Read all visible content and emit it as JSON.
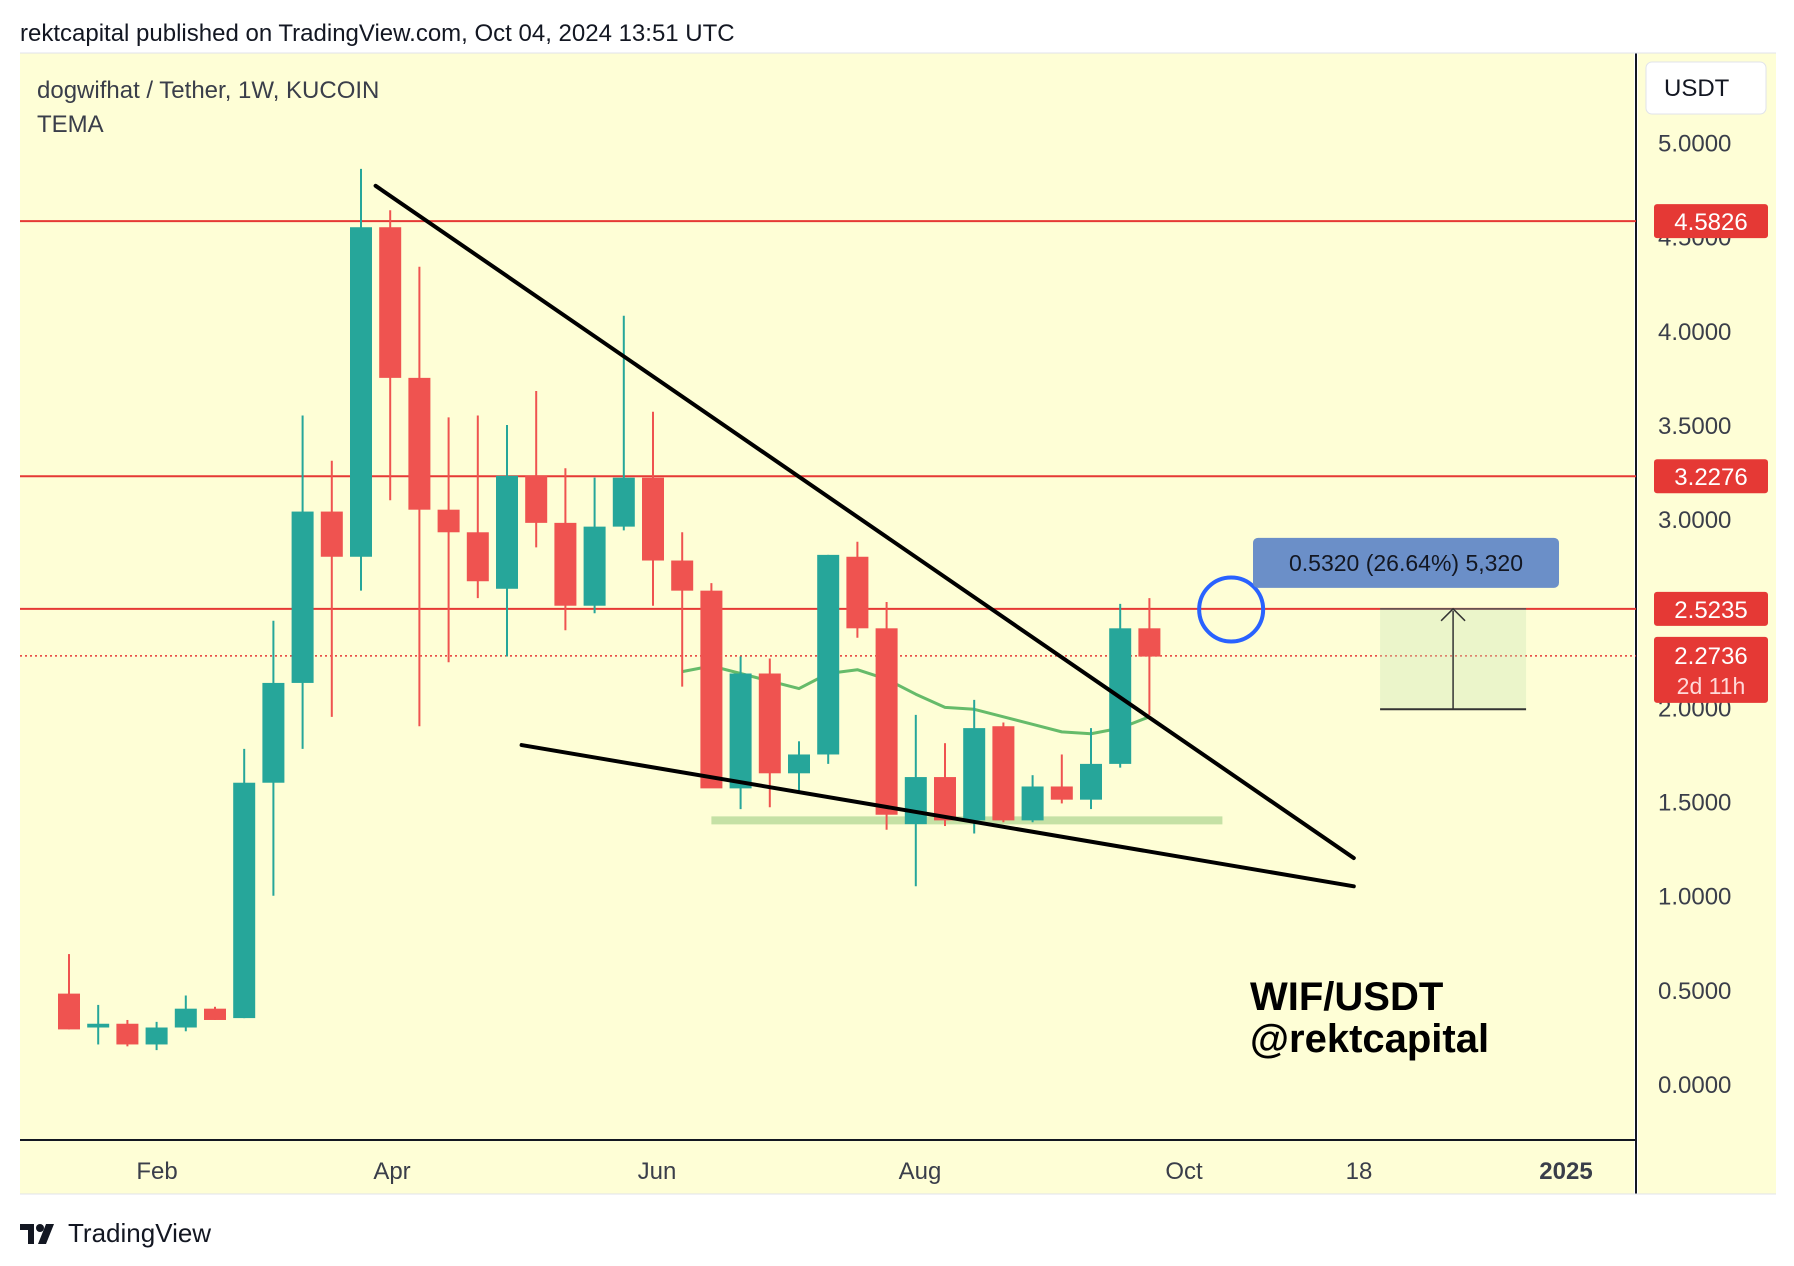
{
  "header": {
    "published": "rektcapital published on TradingView.com, Oct 04, 2024 13:51 UTC"
  },
  "legend": {
    "symbol": "dogwifhat / Tether, 1W, KUCOIN",
    "indicator": "TEMA"
  },
  "currency_button": "USDT",
  "footer": {
    "brand": "TradingView"
  },
  "watermark": {
    "line1": "WIF/USDT",
    "line2": "@rektcapital"
  },
  "colors": {
    "background": "#fefed6",
    "bull": "#26a69a",
    "bear": "#ef5350",
    "level": "#e53935",
    "tema": "#66bb6a",
    "trendline": "#000000",
    "circle": "#2962ff",
    "measure_label": "#6b8fc8",
    "support_band": "#c5e1a5"
  },
  "chart_data": {
    "type": "candlestick",
    "title": "dogwifhat / Tether, 1W, KUCOIN",
    "ylim": [
      -0.3,
      5.3
    ],
    "y_ticks": [
      "0.0000",
      "0.5000",
      "1.0000",
      "1.5000",
      "2.0000",
      "2.5000",
      "3.0000",
      "3.5000",
      "4.0000",
      "4.5000",
      "5.0000"
    ],
    "x_ticks": [
      "Feb",
      "Apr",
      "Jun",
      "Aug",
      "Oct",
      "18",
      "2025"
    ],
    "candles": [
      {
        "o": 0.48,
        "h": 0.69,
        "l": 0.29,
        "c": 0.29
      },
      {
        "o": 0.3,
        "h": 0.42,
        "l": 0.21,
        "c": 0.32
      },
      {
        "o": 0.32,
        "h": 0.34,
        "l": 0.2,
        "c": 0.21
      },
      {
        "o": 0.21,
        "h": 0.33,
        "l": 0.18,
        "c": 0.3
      },
      {
        "o": 0.3,
        "h": 0.47,
        "l": 0.28,
        "c": 0.4
      },
      {
        "o": 0.4,
        "h": 0.41,
        "l": 0.34,
        "c": 0.34
      },
      {
        "o": 0.35,
        "h": 1.78,
        "l": 0.35,
        "c": 1.6
      },
      {
        "o": 1.6,
        "h": 2.46,
        "l": 1.0,
        "c": 2.13
      },
      {
        "o": 2.13,
        "h": 3.55,
        "l": 1.78,
        "c": 3.04
      },
      {
        "o": 3.04,
        "h": 3.31,
        "l": 1.95,
        "c": 2.8
      },
      {
        "o": 2.8,
        "h": 4.86,
        "l": 2.62,
        "c": 4.55
      },
      {
        "o": 4.55,
        "h": 4.64,
        "l": 3.1,
        "c": 3.75
      },
      {
        "o": 3.75,
        "h": 4.34,
        "l": 1.9,
        "c": 3.05
      },
      {
        "o": 3.05,
        "h": 3.54,
        "l": 2.24,
        "c": 2.93
      },
      {
        "o": 2.93,
        "h": 3.55,
        "l": 2.58,
        "c": 2.67
      },
      {
        "o": 2.63,
        "h": 3.5,
        "l": 2.27,
        "c": 3.23
      },
      {
        "o": 3.23,
        "h": 3.68,
        "l": 2.85,
        "c": 2.98
      },
      {
        "o": 2.98,
        "h": 3.27,
        "l": 2.41,
        "c": 2.54
      },
      {
        "o": 2.54,
        "h": 3.22,
        "l": 2.5,
        "c": 2.96
      },
      {
        "o": 2.96,
        "h": 4.08,
        "l": 2.94,
        "c": 3.22
      },
      {
        "o": 3.22,
        "h": 3.57,
        "l": 2.54,
        "c": 2.78
      },
      {
        "o": 2.78,
        "h": 2.93,
        "l": 2.11,
        "c": 2.62
      },
      {
        "o": 2.62,
        "h": 2.66,
        "l": 1.58,
        "c": 1.57
      },
      {
        "o": 1.57,
        "h": 2.27,
        "l": 1.46,
        "c": 2.18
      },
      {
        "o": 2.18,
        "h": 2.26,
        "l": 1.47,
        "c": 1.65
      },
      {
        "o": 1.65,
        "h": 1.82,
        "l": 1.55,
        "c": 1.75
      },
      {
        "o": 1.75,
        "h": 2.81,
        "l": 1.7,
        "c": 2.81
      },
      {
        "o": 2.8,
        "h": 2.88,
        "l": 2.37,
        "c": 2.42
      },
      {
        "o": 2.42,
        "h": 2.56,
        "l": 1.35,
        "c": 1.43
      },
      {
        "o": 1.38,
        "h": 1.96,
        "l": 1.05,
        "c": 1.63
      },
      {
        "o": 1.63,
        "h": 1.81,
        "l": 1.37,
        "c": 1.4
      },
      {
        "o": 1.4,
        "h": 2.04,
        "l": 1.33,
        "c": 1.89
      },
      {
        "o": 1.9,
        "h": 1.92,
        "l": 1.39,
        "c": 1.4
      },
      {
        "o": 1.4,
        "h": 1.64,
        "l": 1.39,
        "c": 1.58
      },
      {
        "o": 1.58,
        "h": 1.75,
        "l": 1.49,
        "c": 1.51
      },
      {
        "o": 1.51,
        "h": 1.89,
        "l": 1.46,
        "c": 1.7
      },
      {
        "o": 1.7,
        "h": 2.55,
        "l": 1.68,
        "c": 2.42
      },
      {
        "o": 2.42,
        "h": 2.58,
        "l": 1.96,
        "c": 2.27
      }
    ],
    "tema": [
      {
        "i": 21,
        "v": 2.19
      },
      {
        "i": 22,
        "v": 2.22
      },
      {
        "i": 23,
        "v": 2.18
      },
      {
        "i": 24,
        "v": 2.14
      },
      {
        "i": 25,
        "v": 2.1
      },
      {
        "i": 26,
        "v": 2.18
      },
      {
        "i": 27,
        "v": 2.2
      },
      {
        "i": 28,
        "v": 2.15
      },
      {
        "i": 29,
        "v": 2.07
      },
      {
        "i": 30,
        "v": 2.0
      },
      {
        "i": 31,
        "v": 1.99
      },
      {
        "i": 32,
        "v": 1.95
      },
      {
        "i": 33,
        "v": 1.91
      },
      {
        "i": 34,
        "v": 1.87
      },
      {
        "i": 35,
        "v": 1.86
      },
      {
        "i": 36,
        "v": 1.89
      },
      {
        "i": 37,
        "v": 1.95
      }
    ],
    "horizontal_levels": [
      {
        "value": 4.5826,
        "label": "4.5826"
      },
      {
        "value": 3.2276,
        "label": "3.2276"
      },
      {
        "value": 2.5235,
        "label": "2.5235"
      }
    ],
    "last_price": {
      "value": 2.2736,
      "label": "2.2736",
      "countdown": "2d 11h"
    },
    "trendlines": [
      {
        "from": {
          "i": 10.5,
          "v": 4.77
        },
        "to": {
          "i": 44,
          "v": 1.2
        }
      },
      {
        "from": {
          "i": 15.5,
          "v": 1.8
        },
        "to": {
          "i": 44,
          "v": 1.05
        }
      }
    ],
    "support_band": {
      "from_i": 22,
      "to_i": 39.5,
      "value": 1.4
    },
    "circle": {
      "i": 39.8,
      "v": 2.52
    },
    "measure": {
      "label": "0.5320 (26.64%) 5,320",
      "from_i": 44.9,
      "to_i": 49.9,
      "low": 1.99,
      "high": 2.5235
    }
  }
}
